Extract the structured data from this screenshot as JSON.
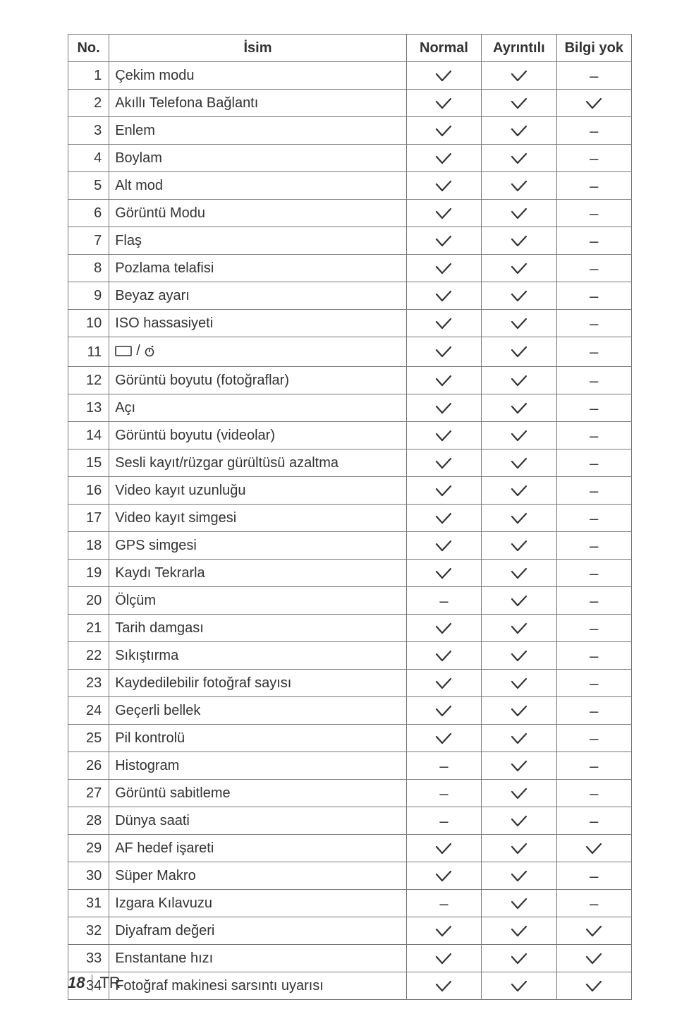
{
  "headers": {
    "no": "No.",
    "name": "İsim",
    "normal": "Normal",
    "detailed": "Ayrıntılı",
    "noinfo": "Bilgi yok"
  },
  "check_color": "#333333",
  "dash_glyph": "–",
  "rows": [
    {
      "no": "1",
      "name": "Çekim modu",
      "marks": [
        "c",
        "c",
        "d"
      ]
    },
    {
      "no": "2",
      "name": "Akıllı Telefona Bağlantı",
      "marks": [
        "c",
        "c",
        "c"
      ]
    },
    {
      "no": "3",
      "name": "Enlem",
      "marks": [
        "c",
        "c",
        "d"
      ]
    },
    {
      "no": "4",
      "name": "Boylam",
      "marks": [
        "c",
        "c",
        "d"
      ]
    },
    {
      "no": "5",
      "name": "Alt mod",
      "marks": [
        "c",
        "c",
        "d"
      ]
    },
    {
      "no": "6",
      "name": "Görüntü Modu",
      "marks": [
        "c",
        "c",
        "d"
      ]
    },
    {
      "no": "7",
      "name": "Flaş",
      "marks": [
        "c",
        "c",
        "d"
      ]
    },
    {
      "no": "8",
      "name": "Pozlama telafisi",
      "marks": [
        "c",
        "c",
        "d"
      ]
    },
    {
      "no": "9",
      "name": "Beyaz ayarı",
      "marks": [
        "c",
        "c",
        "d"
      ]
    },
    {
      "no": "10",
      "name": "ISO hassasiyeti",
      "marks": [
        "c",
        "c",
        "d"
      ]
    },
    {
      "no": "11",
      "name": "__ICON__",
      "marks": [
        "c",
        "c",
        "d"
      ]
    },
    {
      "no": "12",
      "name": "Görüntü boyutu (fotoğraflar)",
      "marks": [
        "c",
        "c",
        "d"
      ]
    },
    {
      "no": "13",
      "name": "Açı",
      "marks": [
        "c",
        "c",
        "d"
      ]
    },
    {
      "no": "14",
      "name": "Görüntü boyutu (videolar)",
      "marks": [
        "c",
        "c",
        "d"
      ]
    },
    {
      "no": "15",
      "name": "Sesli kayıt/rüzgar gürültüsü azaltma",
      "marks": [
        "c",
        "c",
        "d"
      ]
    },
    {
      "no": "16",
      "name": "Video kayıt uzunluğu",
      "marks": [
        "c",
        "c",
        "d"
      ]
    },
    {
      "no": "17",
      "name": "Video kayıt simgesi",
      "marks": [
        "c",
        "c",
        "d"
      ]
    },
    {
      "no": "18",
      "name": "GPS simgesi",
      "marks": [
        "c",
        "c",
        "d"
      ]
    },
    {
      "no": "19",
      "name": "Kaydı Tekrarla",
      "marks": [
        "c",
        "c",
        "d"
      ]
    },
    {
      "no": "20",
      "name": "Ölçüm",
      "marks": [
        "d",
        "c",
        "d"
      ]
    },
    {
      "no": "21",
      "name": "Tarih damgası",
      "marks": [
        "c",
        "c",
        "d"
      ]
    },
    {
      "no": "22",
      "name": "Sıkıştırma",
      "marks": [
        "c",
        "c",
        "d"
      ]
    },
    {
      "no": "23",
      "name": "Kaydedilebilir fotoğraf sayısı",
      "marks": [
        "c",
        "c",
        "d"
      ]
    },
    {
      "no": "24",
      "name": "Geçerli bellek",
      "marks": [
        "c",
        "c",
        "d"
      ]
    },
    {
      "no": "25",
      "name": "Pil kontrolü",
      "marks": [
        "c",
        "c",
        "d"
      ]
    },
    {
      "no": "26",
      "name": "Histogram",
      "marks": [
        "d",
        "c",
        "d"
      ]
    },
    {
      "no": "27",
      "name": "Görüntü sabitleme",
      "marks": [
        "d",
        "c",
        "d"
      ]
    },
    {
      "no": "28",
      "name": "Dünya saati",
      "marks": [
        "d",
        "c",
        "d"
      ]
    },
    {
      "no": "29",
      "name": "AF hedef işareti",
      "marks": [
        "c",
        "c",
        "c"
      ]
    },
    {
      "no": "30",
      "name": "Süper Makro",
      "marks": [
        "c",
        "c",
        "d"
      ]
    },
    {
      "no": "31",
      "name": "Izgara Kılavuzu",
      "marks": [
        "d",
        "c",
        "d"
      ]
    },
    {
      "no": "32",
      "name": "Diyafram değeri",
      "marks": [
        "c",
        "c",
        "c"
      ]
    },
    {
      "no": "33",
      "name": "Enstantane hızı",
      "marks": [
        "c",
        "c",
        "c"
      ]
    },
    {
      "no": "34",
      "name": "Fotoğraf makinesi sarsıntı uyarısı",
      "marks": [
        "c",
        "c",
        "c"
      ]
    }
  ],
  "footer": {
    "page": "18",
    "label": "TR"
  }
}
